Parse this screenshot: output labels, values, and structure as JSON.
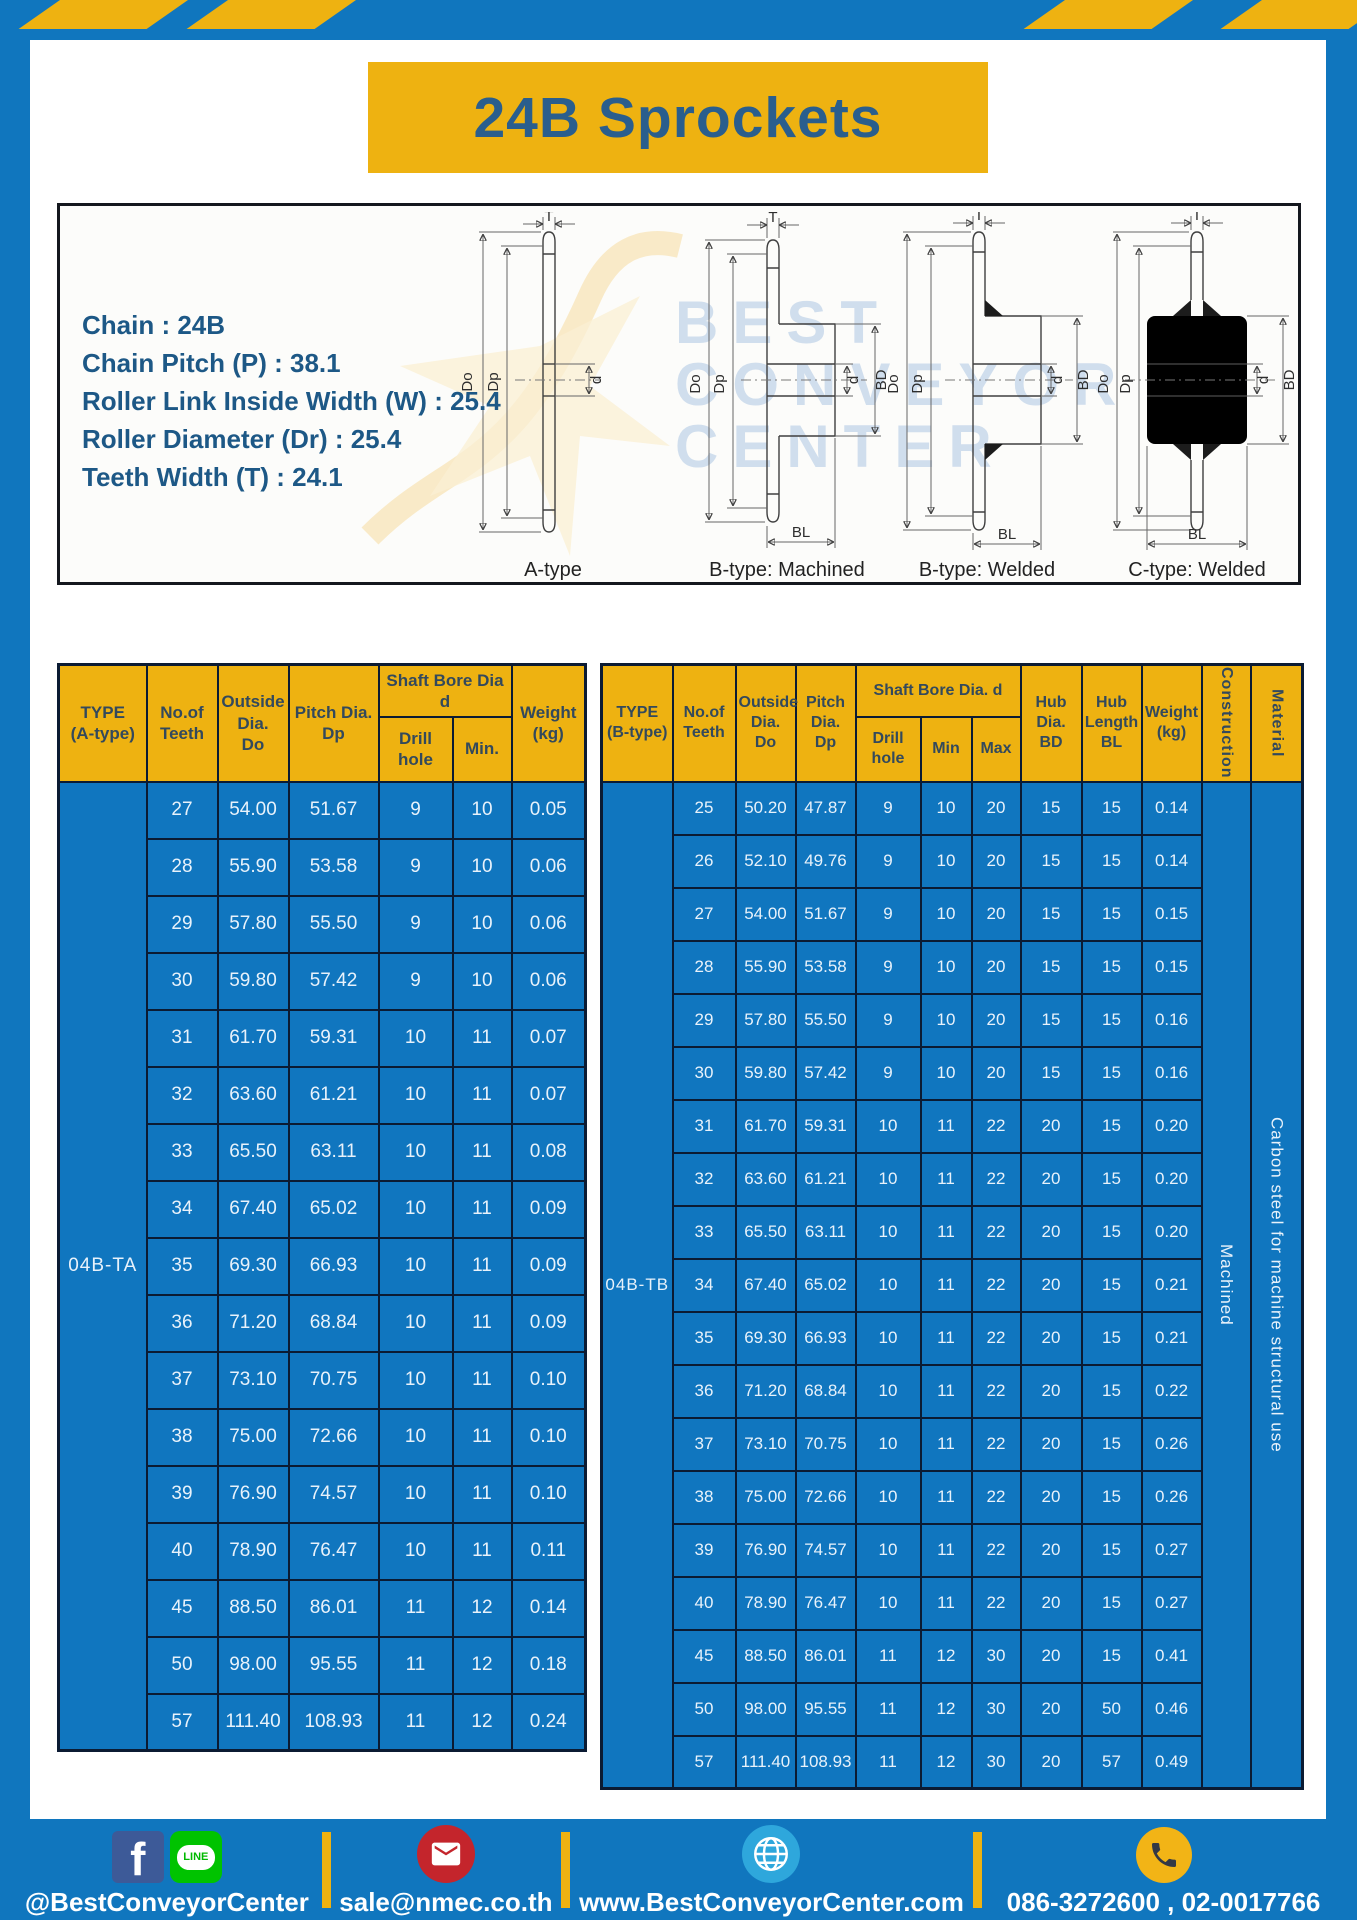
{
  "page": {
    "title": "24B Sprockets"
  },
  "specs": {
    "lines": [
      "Chain : 24B",
      "Chain Pitch (P) : 38.1",
      "Roller Link Inside Width (W) : 25.4",
      "Roller Diameter (Dr) : 25.4",
      "Teeth Width (T) : 24.1"
    ]
  },
  "diagrams": {
    "captions": [
      "A-type",
      "B-type: Machined",
      "B-type: Welded",
      "C-type: Welded"
    ],
    "dims": {
      "t": "T",
      "do": "Do",
      "dp": "Dp",
      "d": "d",
      "bd": "BD",
      "bl": "BL"
    }
  },
  "watermark": {
    "lines": [
      "BEST",
      "CONVEYOR",
      "CENTER"
    ]
  },
  "tables": [
    {
      "headers": {
        "type": "TYPE\n(A-type)",
        "teeth": "No.of\nTeeth",
        "outside": "Outside\nDia.\nDo",
        "pitch": "Pitch Dia.\nDp",
        "shaft": "Shaft Bore Dia d",
        "drill": "Drill hole",
        "min": "Min.",
        "weight": "Weight\n(kg)"
      },
      "type_value": "04B-TA",
      "rows": [
        [
          "27",
          "54.00",
          "51.67",
          "9",
          "10",
          "0.05"
        ],
        [
          "28",
          "55.90",
          "53.58",
          "9",
          "10",
          "0.06"
        ],
        [
          "29",
          "57.80",
          "55.50",
          "9",
          "10",
          "0.06"
        ],
        [
          "30",
          "59.80",
          "57.42",
          "9",
          "10",
          "0.06"
        ],
        [
          "31",
          "61.70",
          "59.31",
          "10",
          "11",
          "0.07"
        ],
        [
          "32",
          "63.60",
          "61.21",
          "10",
          "11",
          "0.07"
        ],
        [
          "33",
          "65.50",
          "63.11",
          "10",
          "11",
          "0.08"
        ],
        [
          "34",
          "67.40",
          "65.02",
          "10",
          "11",
          "0.09"
        ],
        [
          "35",
          "69.30",
          "66.93",
          "10",
          "11",
          "0.09"
        ],
        [
          "36",
          "71.20",
          "68.84",
          "10",
          "11",
          "0.09"
        ],
        [
          "37",
          "73.10",
          "70.75",
          "10",
          "11",
          "0.10"
        ],
        [
          "38",
          "75.00",
          "72.66",
          "10",
          "11",
          "0.10"
        ],
        [
          "39",
          "76.90",
          "74.57",
          "10",
          "11",
          "0.10"
        ],
        [
          "40",
          "78.90",
          "76.47",
          "10",
          "11",
          "0.11"
        ],
        [
          "45",
          "88.50",
          "86.01",
          "11",
          "12",
          "0.14"
        ],
        [
          "50",
          "98.00",
          "95.55",
          "11",
          "12",
          "0.18"
        ],
        [
          "57",
          "111.40",
          "108.93",
          "11",
          "12",
          "0.24"
        ]
      ]
    },
    {
      "headers": {
        "type": "TYPE\n(B-type)",
        "teeth": "No.of\nTeeth",
        "outside": "Outside\nDia.\nDo",
        "pitch": "Pitch\nDia.\nDp",
        "shaft": "Shaft Bore Dia. d",
        "drill": "Drill hole",
        "min": "Min",
        "max": "Max",
        "hub_dia": "Hub\nDia.\nBD",
        "hub_len": "Hub\nLength\nBL",
        "weight": "Weight\n(kg)",
        "construction": "Construction",
        "material": "Material"
      },
      "type_value": "04B-TB",
      "side_cells": [
        {
          "name": "construction-cell",
          "text": "Machined"
        },
        {
          "name": "material-cell",
          "text": "Carbon steel for machine structural use"
        }
      ],
      "rows": [
        [
          "25",
          "50.20",
          "47.87",
          "9",
          "10",
          "20",
          "15",
          "15",
          "0.14"
        ],
        [
          "26",
          "52.10",
          "49.76",
          "9",
          "10",
          "20",
          "15",
          "15",
          "0.14"
        ],
        [
          "27",
          "54.00",
          "51.67",
          "9",
          "10",
          "20",
          "15",
          "15",
          "0.15"
        ],
        [
          "28",
          "55.90",
          "53.58",
          "9",
          "10",
          "20",
          "15",
          "15",
          "0.15"
        ],
        [
          "29",
          "57.80",
          "55.50",
          "9",
          "10",
          "20",
          "15",
          "15",
          "0.16"
        ],
        [
          "30",
          "59.80",
          "57.42",
          "9",
          "10",
          "20",
          "15",
          "15",
          "0.16"
        ],
        [
          "31",
          "61.70",
          "59.31",
          "10",
          "11",
          "22",
          "20",
          "15",
          "0.20"
        ],
        [
          "32",
          "63.60",
          "61.21",
          "10",
          "11",
          "22",
          "20",
          "15",
          "0.20"
        ],
        [
          "33",
          "65.50",
          "63.11",
          "10",
          "11",
          "22",
          "20",
          "15",
          "0.20"
        ],
        [
          "34",
          "67.40",
          "65.02",
          "10",
          "11",
          "22",
          "20",
          "15",
          "0.21"
        ],
        [
          "35",
          "69.30",
          "66.93",
          "10",
          "11",
          "22",
          "20",
          "15",
          "0.21"
        ],
        [
          "36",
          "71.20",
          "68.84",
          "10",
          "11",
          "22",
          "20",
          "15",
          "0.22"
        ],
        [
          "37",
          "73.10",
          "70.75",
          "10",
          "11",
          "22",
          "20",
          "15",
          "0.26"
        ],
        [
          "38",
          "75.00",
          "72.66",
          "10",
          "11",
          "22",
          "20",
          "15",
          "0.26"
        ],
        [
          "39",
          "76.90",
          "74.57",
          "10",
          "11",
          "22",
          "20",
          "15",
          "0.27"
        ],
        [
          "40",
          "78.90",
          "76.47",
          "10",
          "11",
          "22",
          "20",
          "15",
          "0.27"
        ],
        [
          "45",
          "88.50",
          "86.01",
          "11",
          "12",
          "30",
          "20",
          "15",
          "0.41"
        ],
        [
          "50",
          "98.00",
          "95.55",
          "11",
          "12",
          "30",
          "20",
          "50",
          "0.46"
        ],
        [
          "57",
          "111.40",
          "108.93",
          "11",
          "12",
          "30",
          "20",
          "57",
          "0.49"
        ]
      ]
    }
  ],
  "footer": {
    "facebook_letter": "f",
    "line_text": "LINE",
    "social_label": "@BestConveyorCenter",
    "email_label": "sale@nmec.co.th",
    "web_label": "www.BestConveyorCenter.com",
    "phone_label": "086-3272600 , 02-0017766"
  },
  "colors": {
    "frame_blue": "#1076BE",
    "gold": "#EEB211",
    "table_blue": "#1076BF",
    "border_navy": "#0B1B33",
    "title_text": "#2A5E8D",
    "specs_text": "#1D5886"
  }
}
